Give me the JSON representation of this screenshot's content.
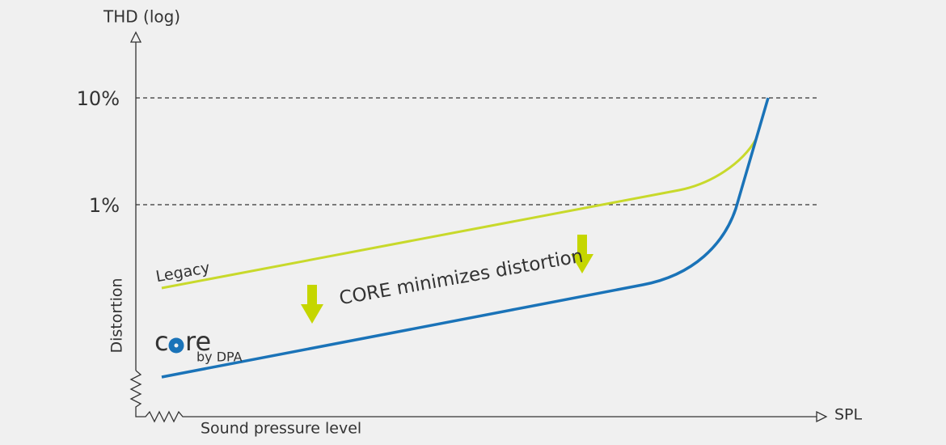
{
  "y_axis": {
    "title": "THD (log)",
    "label": "Distortion",
    "ticks": [
      "10%",
      "1%"
    ]
  },
  "x_axis": {
    "title": "SPL",
    "label": "Sound pressure level"
  },
  "curves": {
    "legacy": "Legacy"
  },
  "annotation": "CORE minimizes distortion",
  "logo": {
    "start": "c",
    "end": "re",
    "by": "by DPA"
  }
}
